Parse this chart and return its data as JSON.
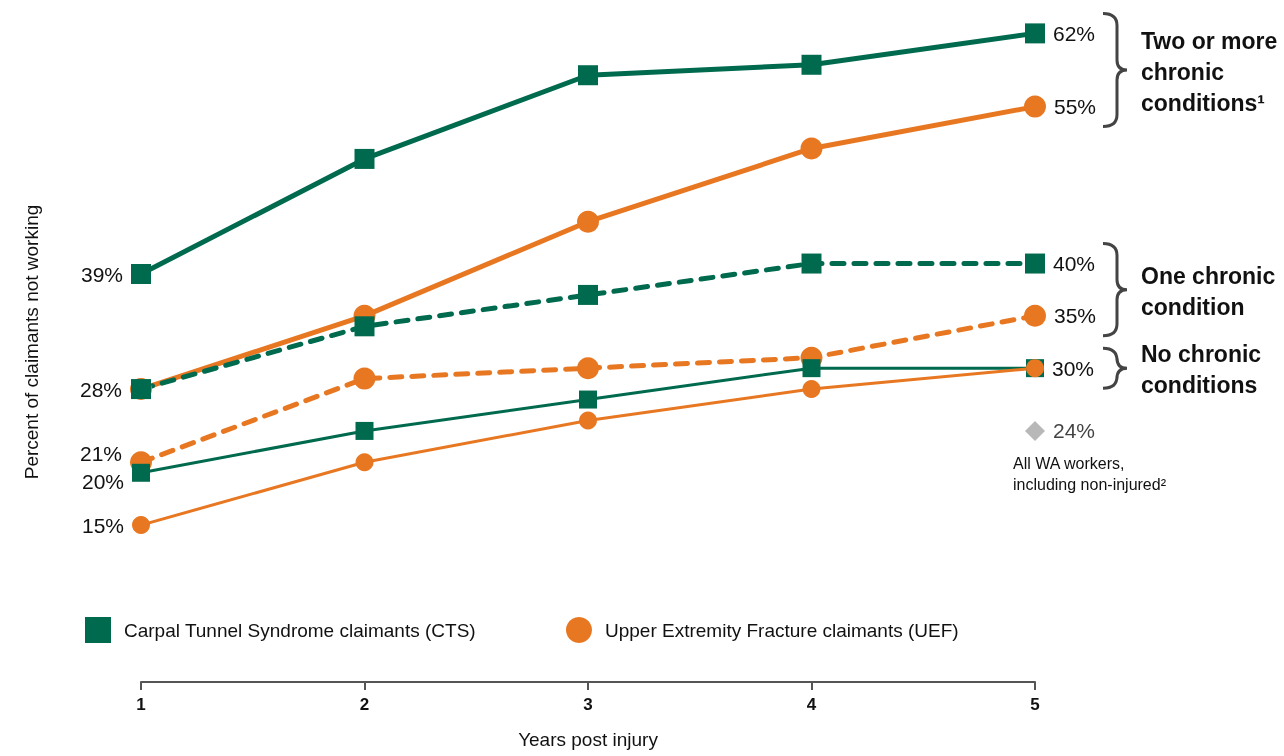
{
  "chart_data": {
    "type": "line",
    "xlabel": "Years post injury",
    "ylabel": "Percent of claimants not working",
    "x": [
      1,
      2,
      3,
      4,
      5
    ],
    "xlim": [
      1,
      5
    ],
    "xticks": [
      1,
      2,
      3,
      4,
      5
    ],
    "tick_labels": "x",
    "grid": false,
    "legend": "bottom left",
    "series": [
      {
        "name": "Carpal Tunnel Syndrome claimants (CTS)",
        "color": "#006a4e",
        "marker": "square",
        "line_style": "solid",
        "values": [
          39,
          50,
          58,
          59,
          62
        ],
        "value_labels": [
          "39%",
          null,
          null,
          null,
          "62%"
        ]
      },
      {
        "name": "Upper Extremity Fracture claimants (UEF)",
        "color": "#e87722",
        "marker": "circle",
        "line_style": "solid",
        "values": [
          28,
          35,
          44,
          51,
          55
        ],
        "value_labels": [
          "28%",
          null,
          null,
          null,
          "55%"
        ]
      },
      {
        "color": "#006a4e",
        "marker": "square",
        "line_style": "dashed",
        "values": [
          28,
          34,
          37,
          40,
          40
        ],
        "value_labels": [
          null,
          null,
          null,
          null,
          "40%"
        ]
      },
      {
        "color": "#e87722",
        "marker": "circle",
        "line_style": "dashed",
        "values": [
          21,
          29,
          30,
          31,
          35
        ],
        "value_labels": [
          "21%",
          null,
          null,
          null,
          "35%"
        ]
      },
      {
        "color": "#006a4e",
        "marker": "square",
        "line_style": "solid",
        "values": [
          20,
          24,
          27,
          30,
          30
        ],
        "value_labels": [
          "20%",
          null,
          null,
          null,
          "30%"
        ]
      },
      {
        "color": "#e87722",
        "marker": "circle",
        "line_style": "solid",
        "values": [
          15,
          21,
          25,
          28,
          30
        ],
        "value_labels": [
          "15%",
          null,
          null,
          null,
          null
        ]
      },
      {
        "type": "scatter",
        "name": "All WA workers, including non-injured²",
        "color": "#a6a6a6",
        "marker": "diamond",
        "x": [
          5
        ],
        "values": [
          24
        ],
        "value_labels": [
          "24%"
        ]
      }
    ],
    "annotations": [
      "Two or more chronic conditions¹",
      "One chronic condition",
      "No chronic conditions"
    ]
  }
}
